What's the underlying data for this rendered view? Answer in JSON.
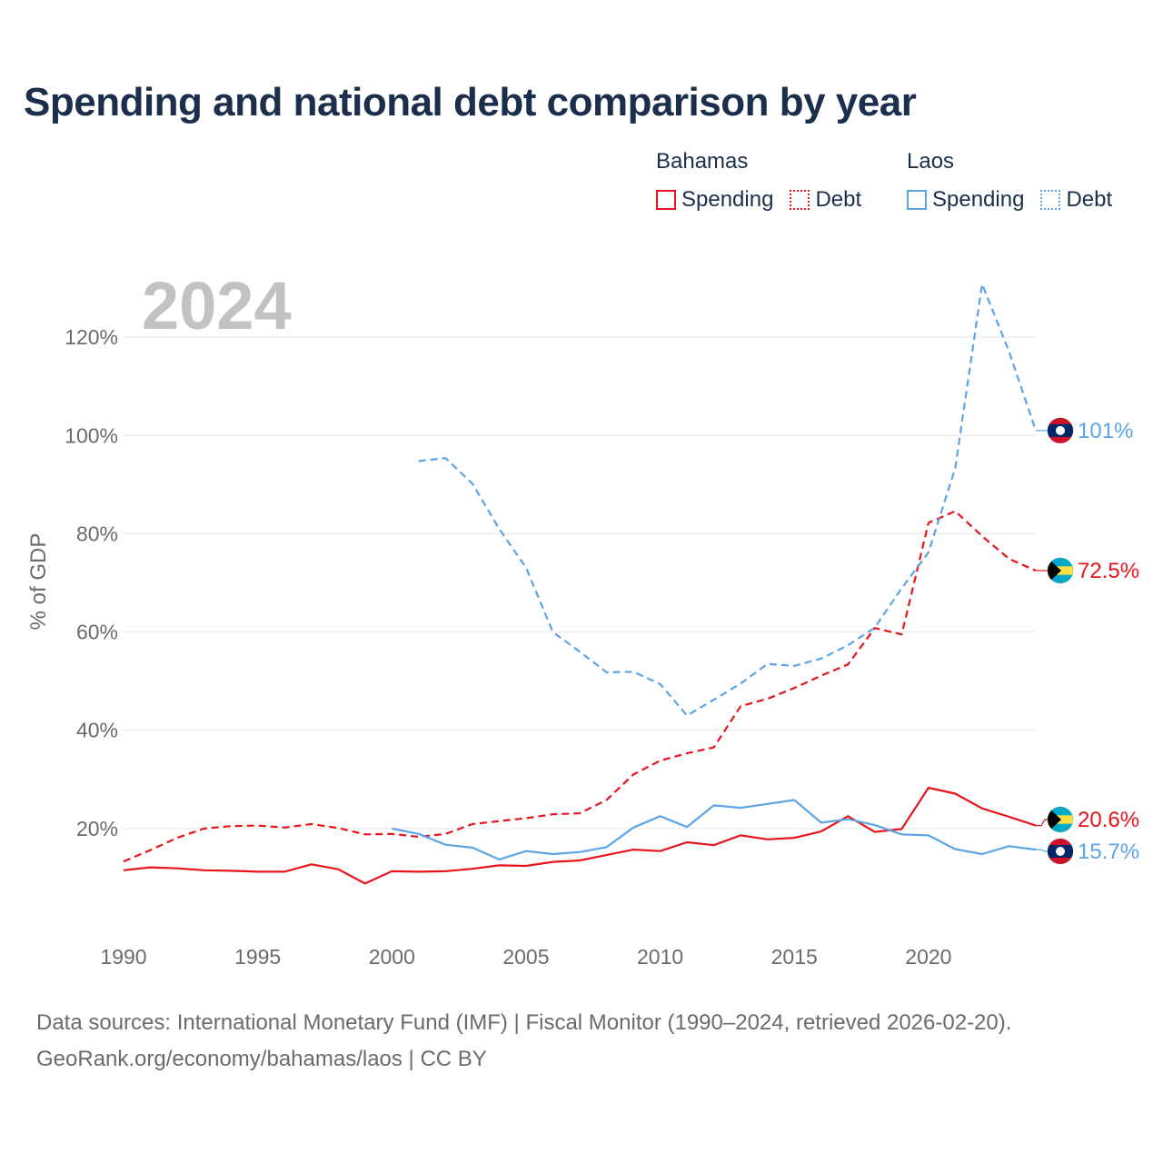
{
  "title": "Spending and national debt comparison by year",
  "legend": {
    "groups": [
      {
        "name": "Bahamas",
        "color": "#e8141c",
        "items": [
          {
            "label": "Spending",
            "style": "solid"
          },
          {
            "label": "Debt",
            "style": "dotted"
          }
        ]
      },
      {
        "name": "Laos",
        "color": "#5ba4e5",
        "items": [
          {
            "label": "Spending",
            "style": "solid"
          },
          {
            "label": "Debt",
            "style": "dotted"
          }
        ]
      }
    ]
  },
  "footer": {
    "line1": "Data sources: International Monetary Fund (IMF) | Fiscal Monitor (1990–2024, retrieved 2026-02-20).",
    "line2": "GeoRank.org/economy/bahamas/laos | CC BY"
  },
  "chart_data": {
    "type": "line",
    "title": "Spending and national debt comparison by year",
    "year_label": "2024",
    "xlabel": "",
    "ylabel": "% of GDP",
    "xlim": [
      1990,
      2024
    ],
    "ylim": [
      0,
      140
    ],
    "x_ticks": [
      1990,
      1995,
      2000,
      2005,
      2010,
      2015,
      2020
    ],
    "y_ticks": [
      {
        "value": 20,
        "label": "20%"
      },
      {
        "value": 40,
        "label": "40%"
      },
      {
        "value": 60,
        "label": "60%"
      },
      {
        "value": 80,
        "label": "80%"
      },
      {
        "value": 100,
        "label": "100%"
      },
      {
        "value": 120,
        "label": "120%"
      }
    ],
    "grid": true,
    "series": [
      {
        "name": "Bahamas Spending",
        "country": "Bahamas",
        "metric": "Spending",
        "color": "#e8141c",
        "dashed": false,
        "x": [
          1990,
          1991,
          1992,
          1993,
          1994,
          1995,
          1996,
          1997,
          1998,
          1999,
          2000,
          2001,
          2002,
          2003,
          2004,
          2005,
          2006,
          2007,
          2008,
          2009,
          2010,
          2011,
          2012,
          2013,
          2014,
          2015,
          2016,
          2017,
          2018,
          2019,
          2020,
          2021,
          2022,
          2023,
          2024
        ],
        "values": [
          11.5,
          12.1,
          11.9,
          11.5,
          11.4,
          11.2,
          11.2,
          12.7,
          11.7,
          8.8,
          11.3,
          11.2,
          11.3,
          11.8,
          12.5,
          12.4,
          13.2,
          13.5,
          14.6,
          15.7,
          15.4,
          17.2,
          16.6,
          18.6,
          17.8,
          18.1,
          19.4,
          22.5,
          19.3,
          19.9,
          28.3,
          27.1,
          24.1,
          22.4,
          20.6
        ],
        "end_label": "20.6%",
        "flag": "bahamas"
      },
      {
        "name": "Bahamas Debt",
        "country": "Bahamas",
        "metric": "Debt",
        "color": "#e8141c",
        "dashed": true,
        "x": [
          1990,
          1991,
          1992,
          1993,
          1994,
          1995,
          1996,
          1997,
          1998,
          1999,
          2000,
          2001,
          2002,
          2003,
          2004,
          2005,
          2006,
          2007,
          2008,
          2009,
          2010,
          2011,
          2012,
          2013,
          2014,
          2015,
          2016,
          2017,
          2018,
          2019,
          2020,
          2021,
          2022,
          2023,
          2024
        ],
        "values": [
          13.3,
          15.6,
          18.1,
          20.0,
          20.5,
          20.6,
          20.2,
          20.9,
          20.1,
          18.8,
          18.9,
          18.3,
          18.9,
          20.9,
          21.5,
          22.1,
          22.9,
          23.1,
          25.8,
          31.0,
          33.8,
          35.3,
          36.5,
          44.9,
          46.4,
          48.6,
          51.1,
          53.4,
          60.8,
          59.5,
          82.2,
          84.6,
          79.5,
          74.9,
          72.5
        ],
        "end_label": "72.5%",
        "flag": "bahamas"
      },
      {
        "name": "Laos Spending",
        "country": "Laos",
        "metric": "Spending",
        "color": "#5ba4e5",
        "dashed": false,
        "x": [
          2000,
          2001,
          2002,
          2003,
          2004,
          2005,
          2006,
          2007,
          2008,
          2009,
          2010,
          2011,
          2012,
          2013,
          2014,
          2015,
          2016,
          2017,
          2018,
          2019,
          2020,
          2021,
          2022,
          2023,
          2024
        ],
        "values": [
          20.0,
          18.9,
          16.7,
          16.1,
          13.7,
          15.4,
          14.8,
          15.2,
          16.2,
          20.2,
          22.5,
          20.3,
          24.7,
          24.2,
          25.0,
          25.8,
          21.2,
          21.9,
          20.7,
          18.8,
          18.6,
          15.8,
          14.8,
          16.4,
          15.7
        ],
        "end_label": "15.7%",
        "flag": "laos"
      },
      {
        "name": "Laos Debt",
        "country": "Laos",
        "metric": "Debt",
        "color": "#5ba4e5",
        "dashed": true,
        "x": [
          2001,
          2002,
          2003,
          2004,
          2005,
          2006,
          2007,
          2008,
          2009,
          2010,
          2011,
          2012,
          2013,
          2014,
          2015,
          2016,
          2017,
          2018,
          2019,
          2020,
          2021,
          2022,
          2023,
          2024
        ],
        "values": [
          94.8,
          95.4,
          90.2,
          81.0,
          73.1,
          60.0,
          56.0,
          51.8,
          51.9,
          49.4,
          43.0,
          46.2,
          49.5,
          53.5,
          53.1,
          54.6,
          57.3,
          60.9,
          68.9,
          76.2,
          93.4,
          130.8,
          117.1,
          101.0
        ],
        "end_label": "101%",
        "flag": "laos"
      }
    ]
  }
}
